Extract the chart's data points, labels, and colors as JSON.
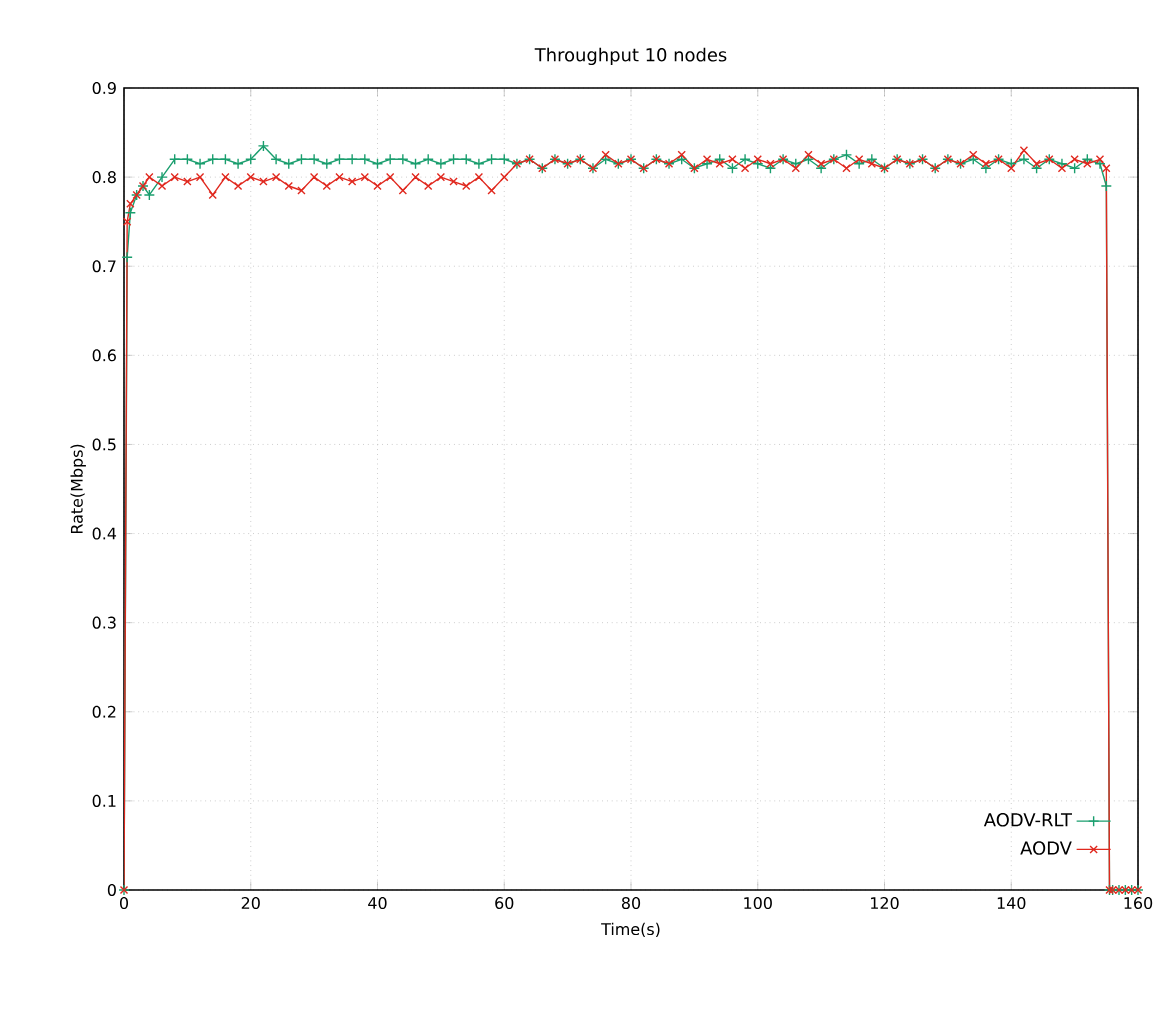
{
  "chart_data": {
    "type": "line",
    "title": "Throughput 10 nodes",
    "xlabel": "Time(s)",
    "ylabel": "Rate(Mbps)",
    "xlim": [
      0,
      160
    ],
    "ylim": [
      0,
      0.9
    ],
    "xticks": [
      0,
      20,
      40,
      60,
      80,
      100,
      120,
      140,
      160
    ],
    "yticks": [
      0,
      0.1,
      0.2,
      0.3,
      0.4,
      0.5,
      0.6,
      0.7,
      0.8,
      0.9
    ],
    "grid": true,
    "legend": "bottom right",
    "line_style": "solid",
    "series": [
      {
        "name": "AODV-RLT",
        "color": "#1a9e6e",
        "marker": "plus",
        "x": [
          0,
          0.5,
          1,
          2,
          3,
          4,
          6,
          8,
          10,
          12,
          14,
          16,
          18,
          20,
          22,
          24,
          26,
          28,
          30,
          32,
          34,
          36,
          38,
          40,
          42,
          44,
          46,
          48,
          50,
          52,
          54,
          56,
          58,
          60,
          62,
          64,
          66,
          68,
          70,
          72,
          74,
          76,
          78,
          80,
          82,
          84,
          86,
          88,
          90,
          92,
          94,
          96,
          98,
          100,
          102,
          104,
          106,
          108,
          110,
          112,
          114,
          116,
          118,
          120,
          122,
          124,
          126,
          128,
          130,
          132,
          134,
          136,
          138,
          140,
          142,
          144,
          146,
          148,
          150,
          152,
          154,
          155,
          155.5,
          156,
          157,
          158,
          159,
          160
        ],
        "values": [
          0,
          0.71,
          0.76,
          0.78,
          0.79,
          0.78,
          0.8,
          0.82,
          0.82,
          0.815,
          0.82,
          0.82,
          0.815,
          0.82,
          0.835,
          0.82,
          0.815,
          0.82,
          0.82,
          0.815,
          0.82,
          0.82,
          0.82,
          0.815,
          0.82,
          0.82,
          0.815,
          0.82,
          0.815,
          0.82,
          0.82,
          0.815,
          0.82,
          0.82,
          0.815,
          0.82,
          0.81,
          0.82,
          0.815,
          0.82,
          0.81,
          0.82,
          0.815,
          0.82,
          0.81,
          0.82,
          0.815,
          0.82,
          0.81,
          0.815,
          0.82,
          0.81,
          0.82,
          0.815,
          0.81,
          0.82,
          0.815,
          0.82,
          0.81,
          0.82,
          0.825,
          0.815,
          0.82,
          0.81,
          0.82,
          0.815,
          0.82,
          0.81,
          0.82,
          0.815,
          0.82,
          0.81,
          0.82,
          0.815,
          0.82,
          0.81,
          0.82,
          0.815,
          0.81,
          0.82,
          0.815,
          0.79,
          0,
          0,
          0,
          0,
          0,
          0
        ]
      },
      {
        "name": "AODV",
        "color": "#e0281e",
        "marker": "cross",
        "x": [
          0,
          0.5,
          1,
          2,
          3,
          4,
          6,
          8,
          10,
          12,
          14,
          16,
          18,
          20,
          22,
          24,
          26,
          28,
          30,
          32,
          34,
          36,
          38,
          40,
          42,
          44,
          46,
          48,
          50,
          52,
          54,
          56,
          58,
          60,
          62,
          64,
          66,
          68,
          70,
          72,
          74,
          76,
          78,
          80,
          82,
          84,
          86,
          88,
          90,
          92,
          94,
          96,
          98,
          100,
          102,
          104,
          106,
          108,
          110,
          112,
          114,
          116,
          118,
          120,
          122,
          124,
          126,
          128,
          130,
          132,
          134,
          136,
          138,
          140,
          142,
          144,
          146,
          148,
          150,
          152,
          154,
          155,
          155.5,
          156,
          157,
          158,
          159,
          160
        ],
        "values": [
          0,
          0.75,
          0.77,
          0.78,
          0.79,
          0.8,
          0.79,
          0.8,
          0.795,
          0.8,
          0.78,
          0.8,
          0.79,
          0.8,
          0.795,
          0.8,
          0.79,
          0.785,
          0.8,
          0.79,
          0.8,
          0.795,
          0.8,
          0.79,
          0.8,
          0.785,
          0.8,
          0.79,
          0.8,
          0.795,
          0.79,
          0.8,
          0.785,
          0.8,
          0.815,
          0.82,
          0.81,
          0.82,
          0.815,
          0.82,
          0.81,
          0.825,
          0.815,
          0.82,
          0.81,
          0.82,
          0.815,
          0.825,
          0.81,
          0.82,
          0.815,
          0.82,
          0.81,
          0.82,
          0.815,
          0.82,
          0.81,
          0.825,
          0.815,
          0.82,
          0.81,
          0.82,
          0.815,
          0.81,
          0.82,
          0.815,
          0.82,
          0.81,
          0.82,
          0.815,
          0.825,
          0.815,
          0.82,
          0.81,
          0.83,
          0.815,
          0.82,
          0.81,
          0.82,
          0.815,
          0.82,
          0.81,
          0,
          0,
          0,
          0,
          0,
          0
        ]
      }
    ]
  }
}
